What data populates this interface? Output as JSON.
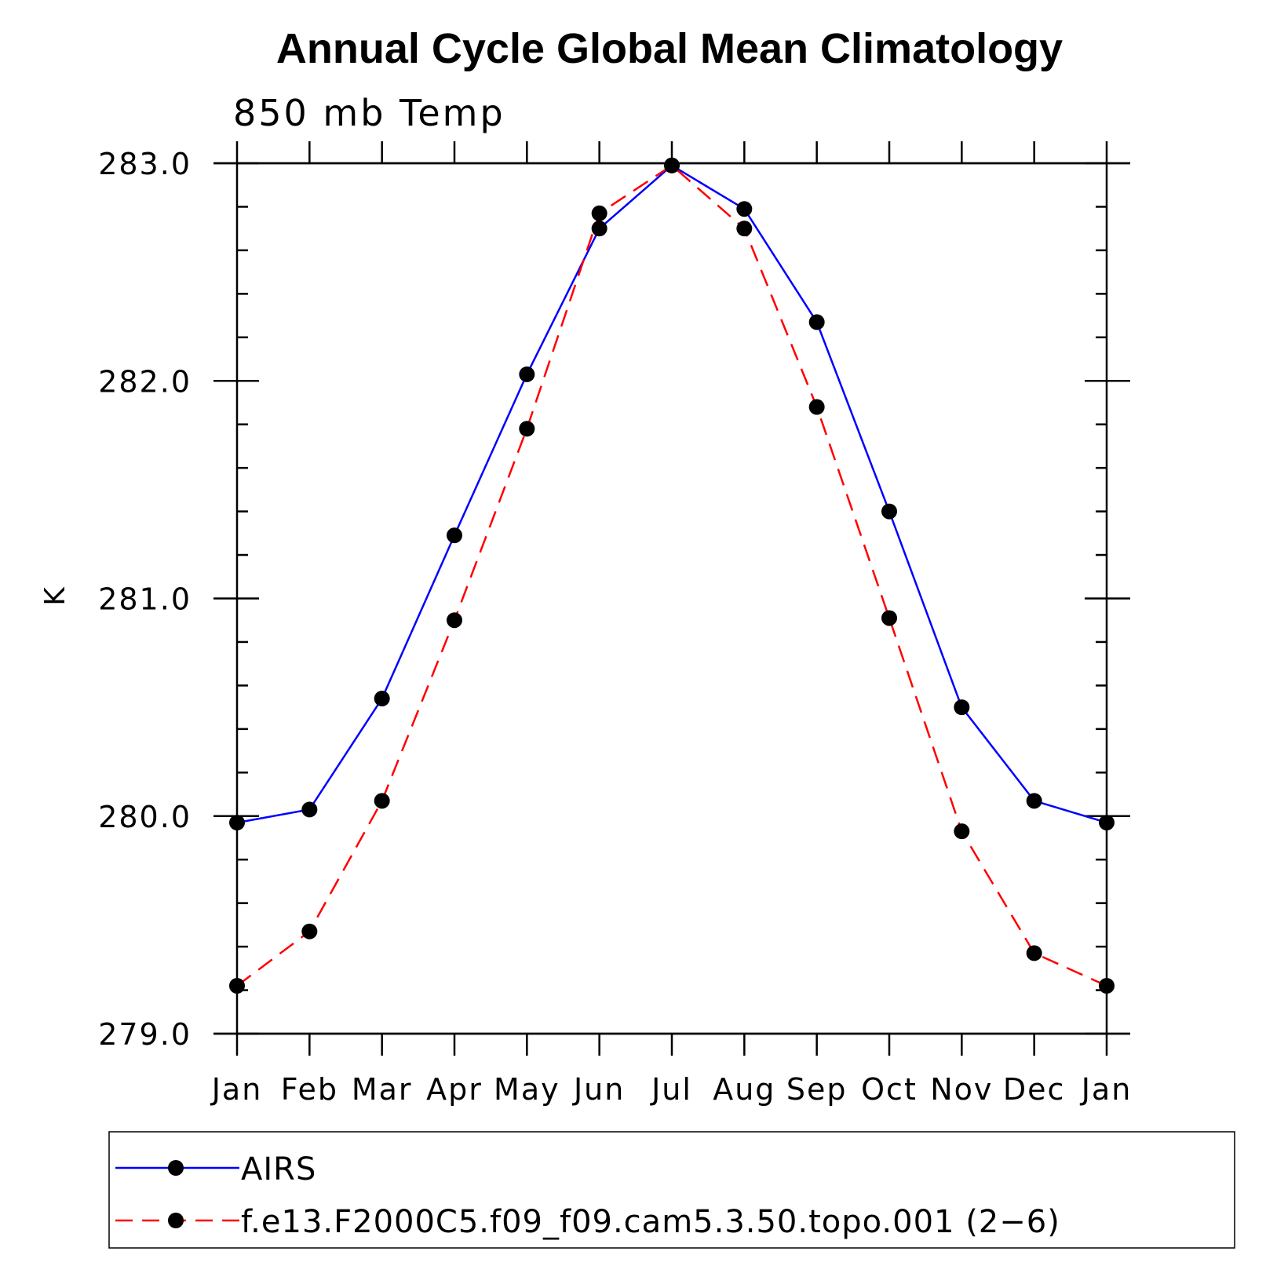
{
  "chart_data": {
    "type": "line",
    "title": "Annual Cycle Global Mean Climatology",
    "subtitle": "850 mb Temp",
    "xlabel": "",
    "ylabel": "K",
    "categories": [
      "Jan",
      "Feb",
      "Mar",
      "Apr",
      "May",
      "Jun",
      "Jul",
      "Aug",
      "Sep",
      "Oct",
      "Nov",
      "Dec",
      "Jan"
    ],
    "ylim": [
      279.0,
      283.0
    ],
    "yticks": [
      "279.0",
      "280.0",
      "281.0",
      "282.0",
      "283.0"
    ],
    "series": [
      {
        "name": "AIRS",
        "color": "#0000ff",
        "style": "solid",
        "values": [
          279.97,
          280.03,
          280.54,
          281.29,
          282.03,
          282.7,
          282.99,
          282.79,
          282.27,
          281.4,
          280.5,
          280.07,
          279.97
        ]
      },
      {
        "name": "f.e13.F2000C5.f09_f09.cam5.3.50.topo.001 (2−6)",
        "color": "#ff0000",
        "style": "dashed",
        "values": [
          279.22,
          279.47,
          280.07,
          280.9,
          281.78,
          282.77,
          282.99,
          282.7,
          281.88,
          280.91,
          279.93,
          279.37,
          279.22
        ]
      }
    ]
  }
}
